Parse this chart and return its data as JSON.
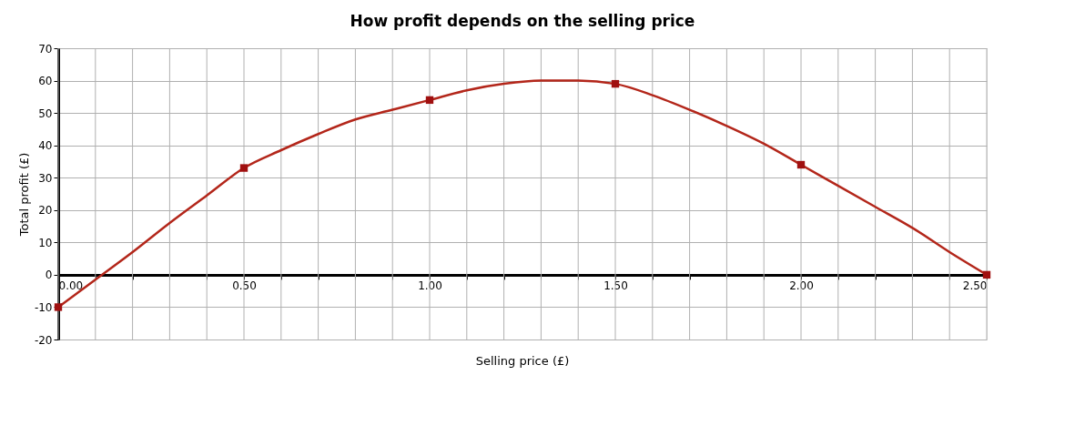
{
  "chart_data": {
    "type": "line",
    "title": "How profit depends on the selling price",
    "xlabel": "Selling price (£)",
    "ylabel": "Total profit (£)",
    "series": [
      {
        "type": "line",
        "color": "#b3261a",
        "marker": "none",
        "x": [
          0,
          0.1,
          0.2,
          0.3,
          0.4,
          0.5,
          0.6,
          0.7,
          0.8,
          0.9,
          1.0,
          1.1,
          1.2,
          1.3,
          1.4,
          1.5,
          1.6,
          1.7,
          1.8,
          1.9,
          2.0,
          2.1,
          2.2,
          2.3,
          2.4,
          2.5
        ],
        "values": [
          -10,
          -1.5,
          7,
          16,
          24.5,
          33,
          38.5,
          43.5,
          48,
          51,
          54,
          57,
          59,
          60,
          60,
          59,
          55.5,
          51,
          46,
          40.5,
          34,
          27.5,
          21,
          14.5,
          7,
          0
        ]
      },
      {
        "type": "scatter",
        "color": "#a01010",
        "marker": "square",
        "x": [
          0,
          0.5,
          1.0,
          1.5,
          2.0,
          2.5
        ],
        "values": [
          -10,
          33,
          54,
          59,
          34,
          0
        ]
      }
    ],
    "xlim": [
      0,
      2.5
    ],
    "ylim": [
      -20,
      70
    ],
    "xticks": [
      {
        "value": 0,
        "label": "0.00"
      },
      {
        "value": 0.1,
        "label": null
      },
      {
        "value": 0.2,
        "label": null
      },
      {
        "value": 0.3,
        "label": null
      },
      {
        "value": 0.4,
        "label": null
      },
      {
        "value": 0.5,
        "label": "0.50"
      },
      {
        "value": 0.6,
        "label": null
      },
      {
        "value": 0.7,
        "label": null
      },
      {
        "value": 0.8,
        "label": null
      },
      {
        "value": 0.9,
        "label": null
      },
      {
        "value": 1.0,
        "label": "1.00"
      },
      {
        "value": 1.1,
        "label": null
      },
      {
        "value": 1.2,
        "label": null
      },
      {
        "value": 1.3,
        "label": null
      },
      {
        "value": 1.4,
        "label": null
      },
      {
        "value": 1.5,
        "label": "1.50"
      },
      {
        "value": 1.6,
        "label": null
      },
      {
        "value": 1.7,
        "label": null
      },
      {
        "value": 1.8,
        "label": null
      },
      {
        "value": 1.9,
        "label": null
      },
      {
        "value": 2.0,
        "label": "2.00"
      },
      {
        "value": 2.1,
        "label": null
      },
      {
        "value": 2.2,
        "label": null
      },
      {
        "value": 2.3,
        "label": null
      },
      {
        "value": 2.4,
        "label": null
      },
      {
        "value": 2.5,
        "label": "2.50"
      }
    ],
    "yticks": [
      -20,
      -10,
      0,
      10,
      20,
      30,
      40,
      50,
      60,
      70
    ],
    "grid": true,
    "legend": false
  }
}
